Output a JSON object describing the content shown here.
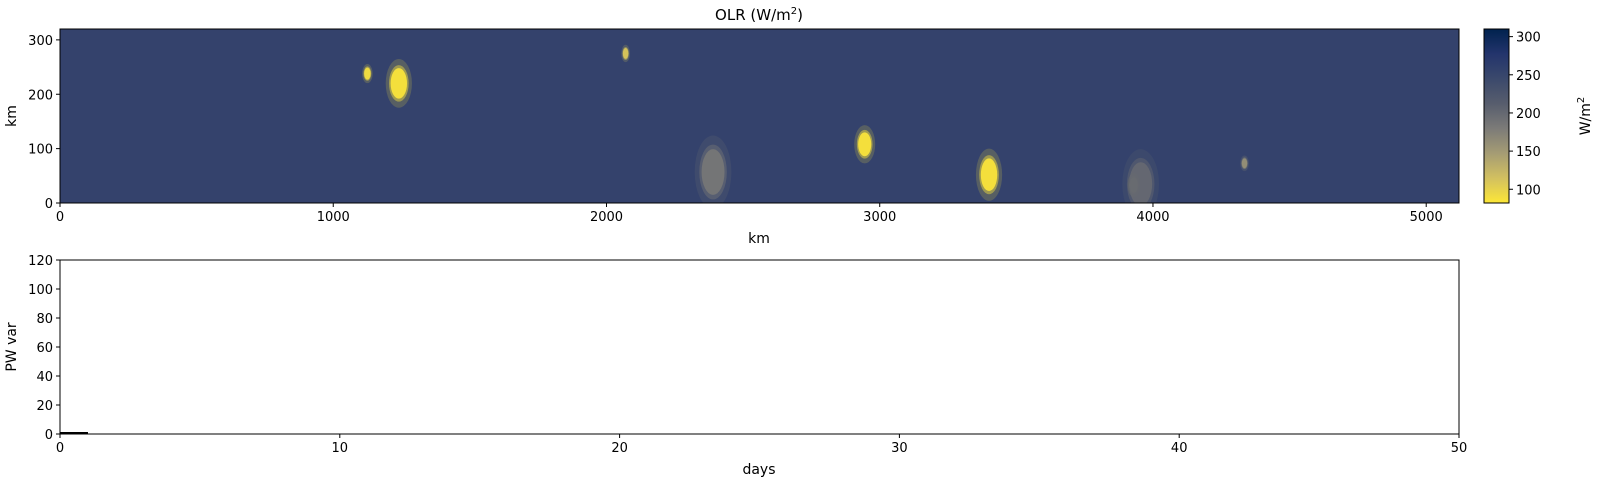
{
  "chart_data": [
    {
      "type": "heatmap",
      "title": "OLR (W/m",
      "title_superscript": "2",
      "title_suffix": ")",
      "xlabel": "km",
      "ylabel": "km",
      "xlim": [
        0,
        5120
      ],
      "ylim": [
        0,
        320
      ],
      "xticks": [
        0,
        1000,
        2000,
        3000,
        4000,
        5000
      ],
      "yticks": [
        0,
        100,
        200,
        300
      ],
      "background_value": 255,
      "features": [
        {
          "x": 1125,
          "y": 238,
          "rx": 12,
          "ry": 11,
          "value": 90
        },
        {
          "x": 1240,
          "y": 220,
          "rx": 30,
          "ry": 28,
          "value": 85
        },
        {
          "x": 2070,
          "y": 275,
          "rx": 10,
          "ry": 10,
          "value": 110
        },
        {
          "x": 2390,
          "y": 57,
          "rx": 42,
          "ry": 42,
          "value": 185
        },
        {
          "x": 2945,
          "y": 108,
          "rx": 24,
          "ry": 22,
          "value": 85
        },
        {
          "x": 3400,
          "y": 52,
          "rx": 30,
          "ry": 30,
          "value": 85
        },
        {
          "x": 3930,
          "y": 33,
          "rx": 14,
          "ry": 14,
          "value": 95
        },
        {
          "x": 3955,
          "y": 35,
          "rx": 42,
          "ry": 40,
          "value": 200
        },
        {
          "x": 4335,
          "y": 73,
          "rx": 10,
          "ry": 9,
          "value": 160
        }
      ],
      "colorbar": {
        "colormap": "cividis_r",
        "label": "W/m",
        "label_superscript": "2",
        "vmin": 82,
        "vmax": 310,
        "ticks": [
          100,
          150,
          200,
          250,
          300
        ],
        "colors": [
          "#fde737",
          "#d2c060",
          "#a59c74",
          "#7c7b78",
          "#575d6d",
          "#3b496c",
          "#23346c",
          "#00224e"
        ]
      }
    },
    {
      "type": "line",
      "xlabel": "days",
      "ylabel": "PW var",
      "xlim": [
        0,
        50
      ],
      "ylim": [
        0,
        120
      ],
      "xticks": [
        0,
        10,
        20,
        30,
        40,
        50
      ],
      "yticks": [
        0,
        20,
        40,
        60,
        80,
        100,
        120
      ],
      "series": [
        {
          "x": [
            0,
            1
          ],
          "y": [
            0.5,
            0.5
          ],
          "color": "#000000"
        }
      ]
    }
  ]
}
